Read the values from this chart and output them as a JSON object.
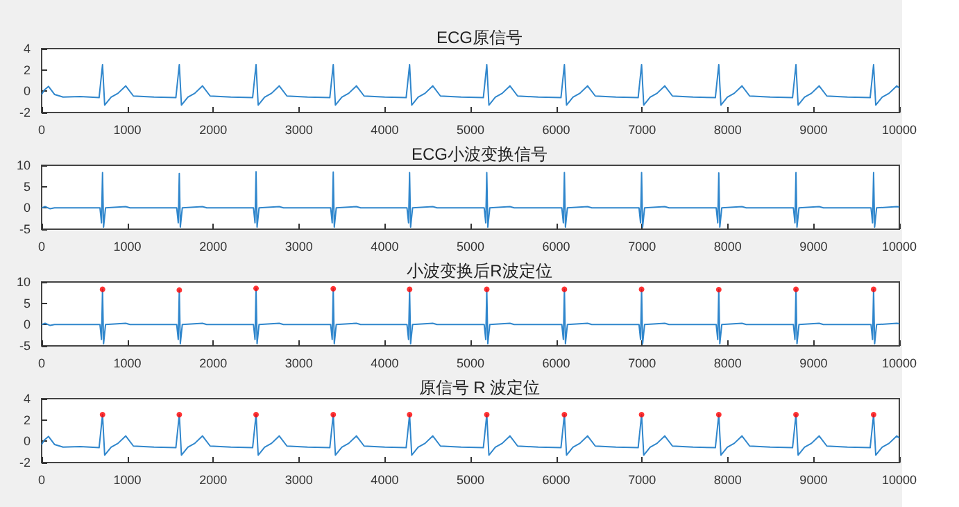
{
  "chart_data": [
    {
      "type": "line",
      "title": "ECG原信号",
      "x": [
        0,
        30,
        80,
        150,
        250,
        450,
        670,
        710,
        735,
        810,
        890,
        980,
        1070,
        1310,
        1565,
        1605,
        1630,
        1705,
        1785,
        1875,
        1965,
        2205,
        2460,
        2500,
        2525,
        2600,
        2680,
        2770,
        2860,
        3100,
        3360,
        3400,
        3425,
        3500,
        3580,
        3670,
        3760,
        4000,
        4250,
        4290,
        4315,
        4390,
        4470,
        4560,
        4650,
        4890,
        5150,
        5190,
        5215,
        5290,
        5370,
        5460,
        5550,
        5790,
        6055,
        6095,
        6120,
        6195,
        6275,
        6365,
        6455,
        6695,
        6955,
        6995,
        7020,
        7095,
        7175,
        7265,
        7355,
        7595,
        7855,
        7895,
        7920,
        7995,
        8075,
        8165,
        8255,
        8495,
        8755,
        8795,
        8820,
        8895,
        8975,
        9065,
        9155,
        9395,
        9660,
        9700,
        9725,
        9800,
        9880,
        9970,
        10000
      ],
      "series": [
        {
          "color": "#2f86cc",
          "marker": "none",
          "values": [
            -0.3,
            0.1,
            0.45,
            -0.3,
            -0.55,
            -0.5,
            -0.6,
            2.5,
            -1.3,
            -0.55,
            -0.2,
            0.5,
            -0.45,
            -0.55,
            -0.6,
            2.5,
            -1.3,
            -0.55,
            -0.2,
            0.5,
            -0.45,
            -0.55,
            -0.6,
            2.5,
            -1.3,
            -0.55,
            -0.2,
            0.5,
            -0.45,
            -0.55,
            -0.6,
            2.5,
            -1.3,
            -0.55,
            -0.2,
            0.5,
            -0.45,
            -0.55,
            -0.6,
            2.5,
            -1.3,
            -0.55,
            -0.2,
            0.5,
            -0.45,
            -0.55,
            -0.6,
            2.5,
            -1.3,
            -0.55,
            -0.2,
            0.5,
            -0.45,
            -0.55,
            -0.6,
            2.5,
            -1.3,
            -0.55,
            -0.2,
            0.5,
            -0.45,
            -0.55,
            -0.6,
            2.5,
            -1.3,
            -0.55,
            -0.2,
            0.5,
            -0.45,
            -0.55,
            -0.6,
            2.5,
            -1.3,
            -0.55,
            -0.2,
            0.5,
            -0.45,
            -0.55,
            -0.6,
            2.5,
            -1.3,
            -0.55,
            -0.2,
            0.5,
            -0.45,
            -0.55,
            -0.6,
            2.5,
            -1.3,
            -0.55,
            -0.2,
            0.5,
            0.3
          ]
        }
      ],
      "xlim": [
        0,
        10000
      ],
      "xticks": [
        0,
        1000,
        2000,
        3000,
        4000,
        5000,
        6000,
        7000,
        8000,
        9000,
        10000
      ],
      "ylim": [
        -2,
        4
      ],
      "yticks": [
        -2,
        0,
        2,
        4
      ],
      "grid": false
    },
    {
      "type": "line",
      "title": "ECG小波变换信号",
      "x": [
        0,
        40,
        100,
        150,
        680,
        698,
        710,
        722,
        745,
        980,
        1030,
        1575,
        1593,
        1605,
        1617,
        1640,
        1875,
        1925,
        2470,
        2488,
        2500,
        2512,
        2535,
        2770,
        2820,
        3370,
        3388,
        3400,
        3412,
        3435,
        3670,
        3720,
        4260,
        4278,
        4290,
        4302,
        4325,
        4560,
        4610,
        5160,
        5178,
        5190,
        5202,
        5225,
        5460,
        5510,
        6065,
        6083,
        6095,
        6107,
        6130,
        6365,
        6415,
        6965,
        6983,
        6995,
        7007,
        7030,
        7265,
        7315,
        7865,
        7883,
        7895,
        7907,
        7930,
        8165,
        8215,
        8765,
        8783,
        8795,
        8807,
        8830,
        9065,
        9115,
        9670,
        9688,
        9700,
        9712,
        9735,
        9970,
        10000
      ],
      "series": [
        {
          "color": "#2f86cc",
          "marker": "none",
          "values": [
            0,
            0.3,
            -0.2,
            0,
            0,
            -3.5,
            8.3,
            -4.5,
            0,
            0.3,
            0,
            0,
            -3.5,
            8.1,
            -4.5,
            0,
            0.3,
            0,
            0,
            -3.5,
            8.5,
            -4.5,
            0,
            0.3,
            0,
            0,
            -3.5,
            8.4,
            -4.5,
            0,
            0.3,
            0,
            0,
            -3.5,
            8.3,
            -4.5,
            0,
            0.3,
            0,
            0,
            -3.5,
            8.3,
            -4.5,
            0,
            0.3,
            0,
            0,
            -3.5,
            8.3,
            -4.5,
            0,
            0.3,
            0,
            0,
            -3.5,
            8.3,
            -4.5,
            0,
            0.3,
            0,
            0,
            -3.5,
            8.2,
            -4.5,
            0,
            0.3,
            0,
            0,
            -3.5,
            8.3,
            -4.5,
            0,
            0.3,
            0,
            0,
            -3.5,
            8.3,
            -4.5,
            0,
            0.3,
            0.2
          ]
        }
      ],
      "xlim": [
        0,
        10000
      ],
      "xticks": [
        0,
        1000,
        2000,
        3000,
        4000,
        5000,
        6000,
        7000,
        8000,
        9000,
        10000
      ],
      "ylim": [
        -5,
        10
      ],
      "yticks": [
        -5,
        0,
        5,
        10
      ],
      "grid": false
    },
    {
      "type": "line",
      "title": "小波变换后R波定位",
      "x": [
        0,
        40,
        100,
        150,
        680,
        698,
        710,
        722,
        745,
        980,
        1030,
        1575,
        1593,
        1605,
        1617,
        1640,
        1875,
        1925,
        2470,
        2488,
        2500,
        2512,
        2535,
        2770,
        2820,
        3370,
        3388,
        3400,
        3412,
        3435,
        3670,
        3720,
        4260,
        4278,
        4290,
        4302,
        4325,
        4560,
        4610,
        5160,
        5178,
        5190,
        5202,
        5225,
        5460,
        5510,
        6065,
        6083,
        6095,
        6107,
        6130,
        6365,
        6415,
        6965,
        6983,
        6995,
        7007,
        7030,
        7265,
        7315,
        7865,
        7883,
        7895,
        7907,
        7930,
        8165,
        8215,
        8765,
        8783,
        8795,
        8807,
        8830,
        9065,
        9115,
        9670,
        9688,
        9700,
        9712,
        9735,
        9970,
        10000
      ],
      "series": [
        {
          "color": "#2f86cc",
          "marker": "none",
          "values": [
            0,
            0.3,
            -0.2,
            0,
            0,
            -3.5,
            8.3,
            -4.5,
            0,
            0.3,
            0,
            0,
            -3.5,
            8.1,
            -4.5,
            0,
            0.3,
            0,
            0,
            -3.5,
            8.5,
            -4.5,
            0,
            0.3,
            0,
            0,
            -3.5,
            8.4,
            -4.5,
            0,
            0.3,
            0,
            0,
            -3.5,
            8.3,
            -4.5,
            0,
            0.3,
            0,
            0,
            -3.5,
            8.3,
            -4.5,
            0,
            0.3,
            0,
            0,
            -3.5,
            8.3,
            -4.5,
            0,
            0.3,
            0,
            0,
            -3.5,
            8.3,
            -4.5,
            0,
            0.3,
            0,
            0,
            -3.5,
            8.2,
            -4.5,
            0,
            0.3,
            0,
            0,
            -3.5,
            8.3,
            -4.5,
            0,
            0.3,
            0,
            0,
            -3.5,
            8.3,
            -4.5,
            0,
            0.3,
            0.2
          ]
        },
        {
          "type": "scatter",
          "color": "#ff0000",
          "marker": "circle",
          "x": [
            710,
            1605,
            2500,
            3400,
            4290,
            5190,
            6095,
            6995,
            7895,
            8795,
            9700
          ],
          "values": [
            8.3,
            8.1,
            8.5,
            8.4,
            8.3,
            8.3,
            8.3,
            8.3,
            8.2,
            8.3,
            8.3
          ]
        }
      ],
      "xlim": [
        0,
        10000
      ],
      "xticks": [
        0,
        1000,
        2000,
        3000,
        4000,
        5000,
        6000,
        7000,
        8000,
        9000,
        10000
      ],
      "ylim": [
        -5,
        10
      ],
      "yticks": [
        -5,
        0,
        5,
        10
      ],
      "grid": false
    },
    {
      "type": "line",
      "title": "原信号 R 波定位",
      "x": [
        0,
        30,
        80,
        150,
        250,
        450,
        670,
        710,
        735,
        810,
        890,
        980,
        1070,
        1310,
        1565,
        1605,
        1630,
        1705,
        1785,
        1875,
        1965,
        2205,
        2460,
        2500,
        2525,
        2600,
        2680,
        2770,
        2860,
        3100,
        3360,
        3400,
        3425,
        3500,
        3580,
        3670,
        3760,
        4000,
        4250,
        4290,
        4315,
        4390,
        4470,
        4560,
        4650,
        4890,
        5150,
        5190,
        5215,
        5290,
        5370,
        5460,
        5550,
        5790,
        6055,
        6095,
        6120,
        6195,
        6275,
        6365,
        6455,
        6695,
        6955,
        6995,
        7020,
        7095,
        7175,
        7265,
        7355,
        7595,
        7855,
        7895,
        7920,
        7995,
        8075,
        8165,
        8255,
        8495,
        8755,
        8795,
        8820,
        8895,
        8975,
        9065,
        9155,
        9395,
        9660,
        9700,
        9725,
        9800,
        9880,
        9970,
        10000
      ],
      "series": [
        {
          "color": "#2f86cc",
          "marker": "none",
          "values": [
            -0.3,
            0.1,
            0.45,
            -0.3,
            -0.55,
            -0.5,
            -0.6,
            2.5,
            -1.3,
            -0.55,
            -0.2,
            0.5,
            -0.45,
            -0.55,
            -0.6,
            2.5,
            -1.3,
            -0.55,
            -0.2,
            0.5,
            -0.45,
            -0.55,
            -0.6,
            2.5,
            -1.3,
            -0.55,
            -0.2,
            0.5,
            -0.45,
            -0.55,
            -0.6,
            2.5,
            -1.3,
            -0.55,
            -0.2,
            0.5,
            -0.45,
            -0.55,
            -0.6,
            2.5,
            -1.3,
            -0.55,
            -0.2,
            0.5,
            -0.45,
            -0.55,
            -0.6,
            2.5,
            -1.3,
            -0.55,
            -0.2,
            0.5,
            -0.45,
            -0.55,
            -0.6,
            2.5,
            -1.3,
            -0.55,
            -0.2,
            0.5,
            -0.45,
            -0.55,
            -0.6,
            2.5,
            -1.3,
            -0.55,
            -0.2,
            0.5,
            -0.45,
            -0.55,
            -0.6,
            2.5,
            -1.3,
            -0.55,
            -0.2,
            0.5,
            -0.45,
            -0.55,
            -0.6,
            2.5,
            -1.3,
            -0.55,
            -0.2,
            0.5,
            -0.45,
            -0.55,
            -0.6,
            2.5,
            -1.3,
            -0.55,
            -0.2,
            0.5,
            0.3
          ]
        },
        {
          "type": "scatter",
          "color": "#ff0000",
          "marker": "circle",
          "x": [
            710,
            1605,
            2500,
            3400,
            4290,
            5190,
            6095,
            6995,
            7895,
            8795,
            9700
          ],
          "values": [
            2.5,
            2.5,
            2.5,
            2.5,
            2.5,
            2.5,
            2.5,
            2.5,
            2.5,
            2.5,
            2.5
          ]
        }
      ],
      "xlim": [
        0,
        10000
      ],
      "xticks": [
        0,
        1000,
        2000,
        3000,
        4000,
        5000,
        6000,
        7000,
        8000,
        9000,
        10000
      ],
      "ylim": [
        -2,
        4
      ],
      "yticks": [
        -2,
        0,
        2,
        4
      ],
      "grid": false
    }
  ]
}
